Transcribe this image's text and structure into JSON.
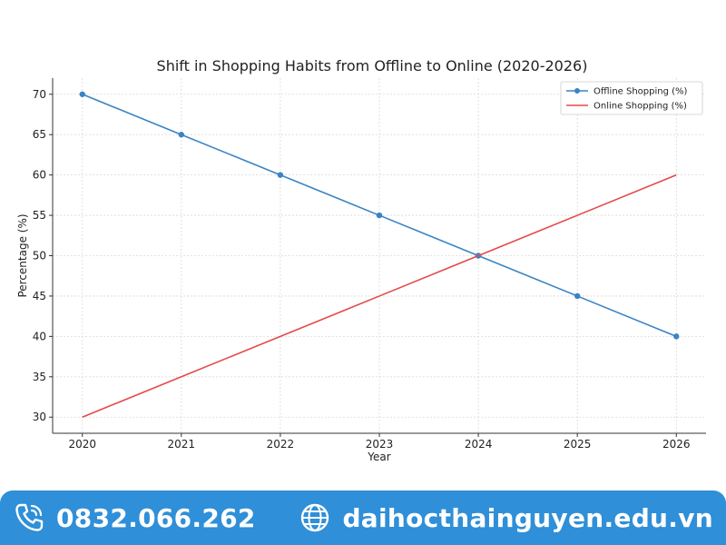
{
  "chart_data": {
    "type": "line",
    "title": "Shift in Shopping Habits from Offline to Online (2020-2026)",
    "xlabel": "Year",
    "ylabel": "Percentage (%)",
    "x": [
      2020,
      2021,
      2022,
      2023,
      2024,
      2025,
      2026
    ],
    "ylim": [
      28,
      72
    ],
    "yticks": [
      30,
      35,
      40,
      45,
      50,
      55,
      60,
      65,
      70
    ],
    "grid": true,
    "legend_position": "top-right",
    "series": [
      {
        "name": "Offline Shopping (%)",
        "values": [
          70,
          65,
          60,
          55,
          50,
          45,
          40
        ],
        "color": "#3a84c4",
        "marker": "circle"
      },
      {
        "name": "Online Shopping (%)",
        "values": [
          30,
          35,
          40,
          45,
          50,
          55,
          60
        ],
        "color": "#e34a4a",
        "marker": "none"
      }
    ]
  },
  "footer": {
    "phone": "0832.066.262",
    "website": "daihocthainguyen.edu.vn",
    "phone_icon": "phone-icon",
    "globe_icon": "globe-icon",
    "background_color": "#2f8fd8"
  }
}
